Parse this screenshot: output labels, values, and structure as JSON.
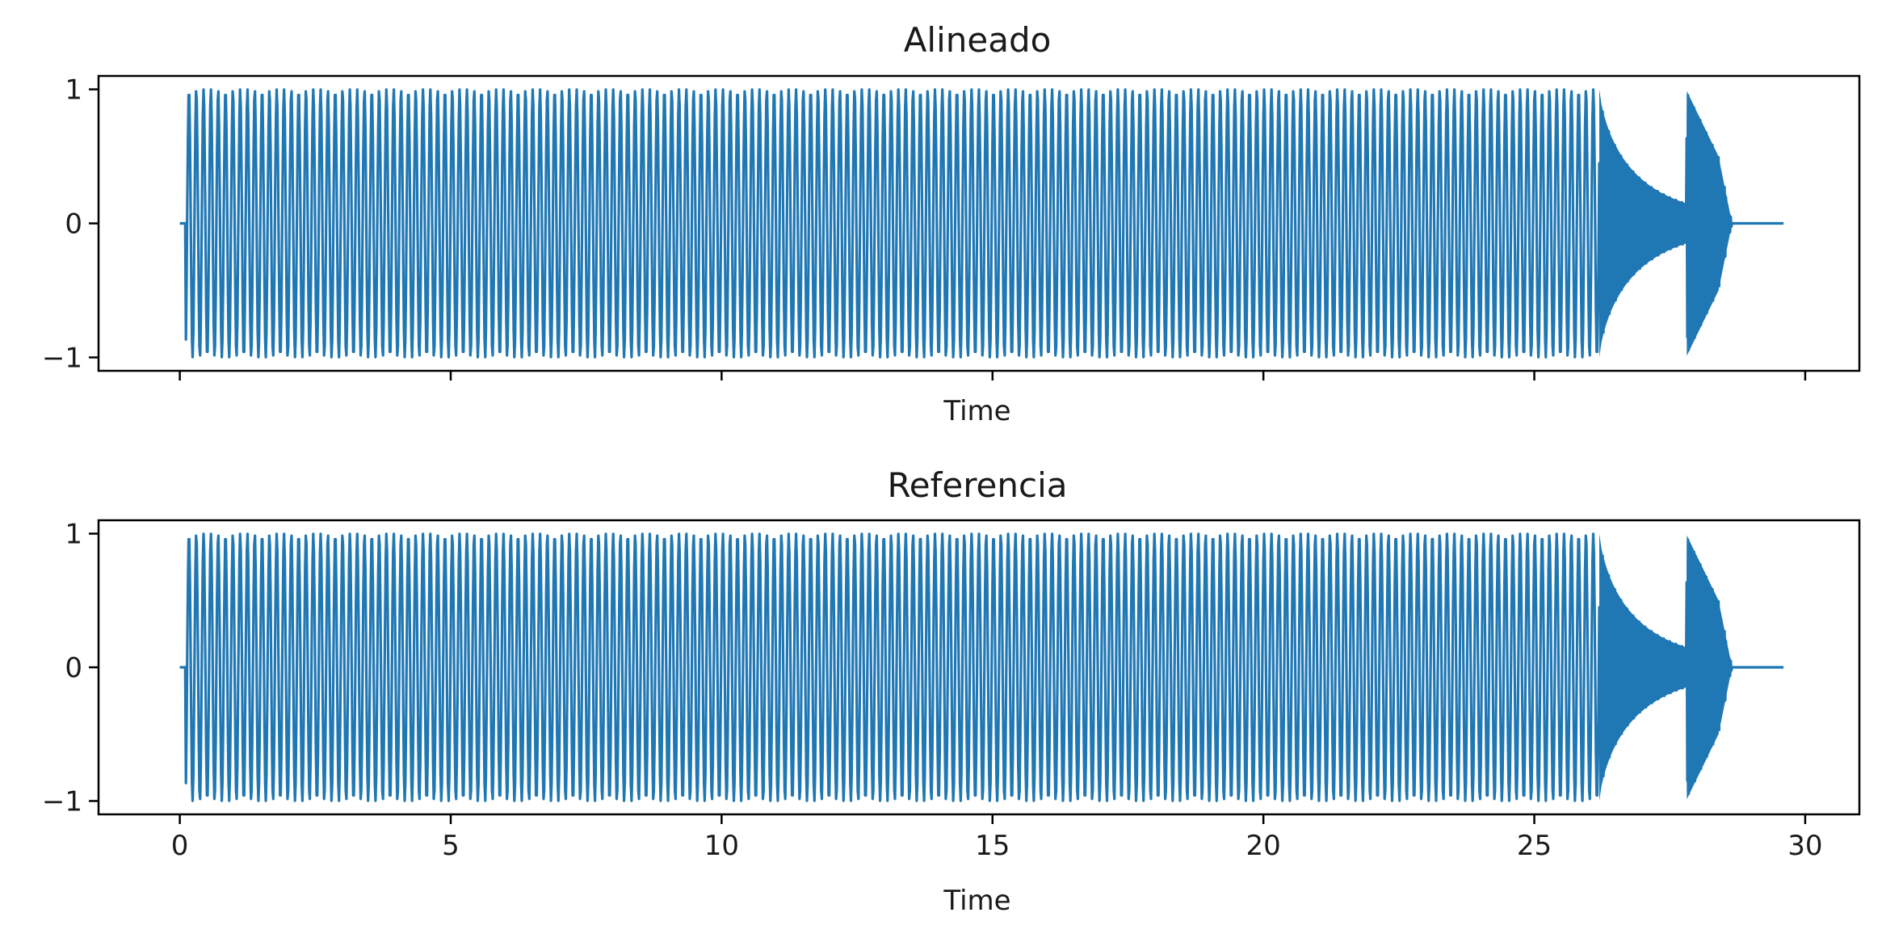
{
  "colors": {
    "series": "#1f77b4",
    "axes": "#000000",
    "background": "#ffffff"
  },
  "chart_data": [
    {
      "type": "line",
      "title": "Alineado",
      "xlabel": "Time",
      "ylabel": "",
      "xlim": [
        -1.5,
        31.0
      ],
      "ylim": [
        -1.1,
        1.1
      ],
      "xticks": [
        0,
        5,
        10,
        15,
        20,
        25,
        30
      ],
      "xtick_labels_visible": false,
      "yticks": [
        -1,
        0,
        1
      ],
      "ytick_labels": [
        "−1",
        "0",
        "1"
      ],
      "grid": false,
      "series": [
        {
          "description_segments": [
            {
              "x_start": 0.0,
              "x_end": 0.1,
              "amplitude": 0.0
            },
            {
              "x_start": 0.1,
              "x_end": 26.2,
              "amplitude": 1.0,
              "oscillating": true
            },
            {
              "x_start": 26.2,
              "x_end": 27.8,
              "amplitude_from": 1.0,
              "amplitude_to": 0.15,
              "oscillating": true
            },
            {
              "x_start": 27.8,
              "x_end": 28.4,
              "amplitude_from": 1.0,
              "amplitude_to": 0.5,
              "oscillating": true
            },
            {
              "x_start": 28.4,
              "x_end": 28.65,
              "amplitude_from": 0.5,
              "amplitude_to": 0.0,
              "oscillating": true
            },
            {
              "x_start": 28.65,
              "x_end": 29.6,
              "amplitude": 0.0
            }
          ]
        }
      ]
    },
    {
      "type": "line",
      "title": "Referencia",
      "xlabel": "Time",
      "ylabel": "",
      "xlim": [
        -1.5,
        31.0
      ],
      "ylim": [
        -1.1,
        1.1
      ],
      "xticks": [
        0,
        5,
        10,
        15,
        20,
        25,
        30
      ],
      "xtick_labels": [
        "0",
        "5",
        "10",
        "15",
        "20",
        "25",
        "30"
      ],
      "xtick_labels_visible": true,
      "yticks": [
        -1,
        0,
        1
      ],
      "ytick_labels": [
        "−1",
        "0",
        "1"
      ],
      "grid": false,
      "series": [
        {
          "description_segments": [
            {
              "x_start": 0.0,
              "x_end": 0.1,
              "amplitude": 0.0
            },
            {
              "x_start": 0.1,
              "x_end": 26.2,
              "amplitude": 1.0,
              "oscillating": true
            },
            {
              "x_start": 26.2,
              "x_end": 27.8,
              "amplitude_from": 1.0,
              "amplitude_to": 0.15,
              "oscillating": true
            },
            {
              "x_start": 27.8,
              "x_end": 28.4,
              "amplitude_from": 1.0,
              "amplitude_to": 0.5,
              "oscillating": true
            },
            {
              "x_start": 28.4,
              "x_end": 28.65,
              "amplitude_from": 0.5,
              "amplitude_to": 0.0,
              "oscillating": true
            },
            {
              "x_start": 28.65,
              "x_end": 29.6,
              "amplitude": 0.0
            }
          ]
        }
      ]
    }
  ]
}
